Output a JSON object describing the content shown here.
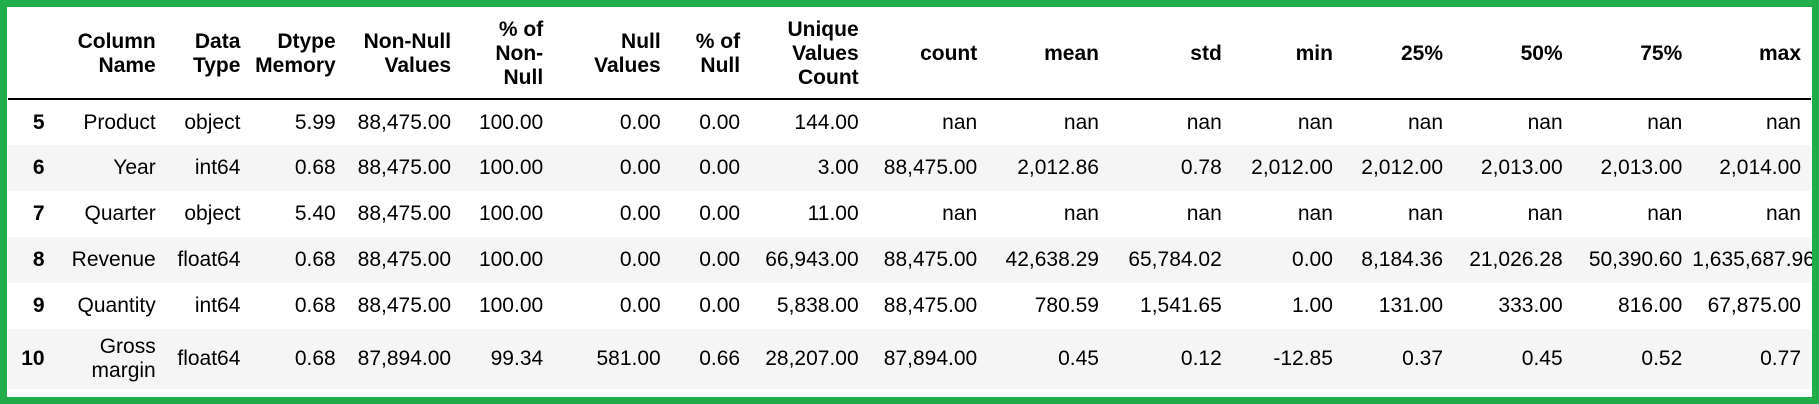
{
  "columns": [
    "",
    "Column Name",
    "Data Type",
    "Dtype Memory",
    "Non-Null Values",
    "% of Non-Null",
    "Null Values",
    "% of Null",
    "Unique Values Count",
    "count",
    "mean",
    "std",
    "min",
    "25%",
    "50%",
    "75%",
    "max"
  ],
  "rows": [
    {
      "index": "5",
      "cells": [
        "Product",
        "object",
        "5.99",
        "88,475.00",
        "100.00",
        "0.00",
        "0.00",
        "144.00",
        "nan",
        "nan",
        "nan",
        "nan",
        "nan",
        "nan",
        "nan",
        "nan"
      ]
    },
    {
      "index": "6",
      "cells": [
        "Year",
        "int64",
        "0.68",
        "88,475.00",
        "100.00",
        "0.00",
        "0.00",
        "3.00",
        "88,475.00",
        "2,012.86",
        "0.78",
        "2,012.00",
        "2,012.00",
        "2,013.00",
        "2,013.00",
        "2,014.00"
      ]
    },
    {
      "index": "7",
      "cells": [
        "Quarter",
        "object",
        "5.40",
        "88,475.00",
        "100.00",
        "0.00",
        "0.00",
        "11.00",
        "nan",
        "nan",
        "nan",
        "nan",
        "nan",
        "nan",
        "nan",
        "nan"
      ]
    },
    {
      "index": "8",
      "cells": [
        "Revenue",
        "float64",
        "0.68",
        "88,475.00",
        "100.00",
        "0.00",
        "0.00",
        "66,943.00",
        "88,475.00",
        "42,638.29",
        "65,784.02",
        "0.00",
        "8,184.36",
        "21,026.28",
        "50,390.60",
        "1,635,687.96"
      ]
    },
    {
      "index": "9",
      "cells": [
        "Quantity",
        "int64",
        "0.68",
        "88,475.00",
        "100.00",
        "0.00",
        "0.00",
        "5,838.00",
        "88,475.00",
        "780.59",
        "1,541.65",
        "1.00",
        "131.00",
        "333.00",
        "816.00",
        "67,875.00"
      ]
    },
    {
      "index": "10",
      "cells": [
        "Gross margin",
        "float64",
        "0.68",
        "87,894.00",
        "99.34",
        "581.00",
        "0.66",
        "28,207.00",
        "87,894.00",
        "0.45",
        "0.12",
        "-12.85",
        "0.37",
        "0.45",
        "0.52",
        "0.77"
      ]
    }
  ],
  "colors": {
    "frame_border": "#21ad4a",
    "stripe": "#f5f5f5",
    "text": "#000000"
  }
}
